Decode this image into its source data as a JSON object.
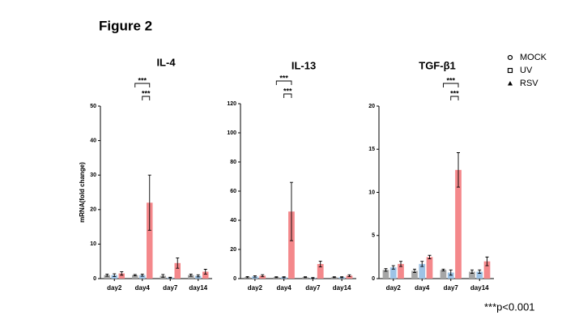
{
  "title": "Figure 2",
  "footnote": "***p<0.001",
  "chart_data": [
    {
      "type": "bar",
      "title": "IL-4",
      "ylabel": "mRNA(fold change)",
      "categories": [
        "day2",
        "day4",
        "day7",
        "day14"
      ],
      "ylim": [
        0,
        50
      ],
      "yticks": [
        0,
        10,
        20,
        30,
        40,
        50
      ],
      "series": [
        {
          "name": "MOCK",
          "color": "#a6a6a6",
          "label_color": "#000000",
          "marker": "circle",
          "values": [
            1,
            1,
            0.8,
            1
          ],
          "errors": [
            0.3,
            0.2,
            0.4,
            0.3
          ]
        },
        {
          "name": "UV",
          "color": "#9dc3e6",
          "label_color": "#1f2f9e",
          "marker": "square",
          "values": [
            1,
            1,
            0.3,
            0.8
          ],
          "errors": [
            0.4,
            0.3,
            0.1,
            0.3
          ]
        },
        {
          "name": "RSV",
          "color": "#f4888b",
          "label_color": "#e8322f",
          "marker": "triangle",
          "values": [
            1.5,
            22,
            4.5,
            2
          ],
          "errors": [
            0.5,
            8,
            1.5,
            0.7
          ]
        }
      ],
      "significance": [
        {
          "label": "***",
          "category": "day4",
          "between": [
            "MOCK",
            "RSV"
          ]
        },
        {
          "label": "***",
          "category": "day4",
          "between": [
            "UV",
            "RSV"
          ]
        }
      ]
    },
    {
      "type": "bar",
      "title": "IL-13",
      "categories": [
        "day2",
        "day4",
        "day7",
        "day14"
      ],
      "ylim": [
        0,
        120
      ],
      "yticks": [
        0,
        20,
        40,
        60,
        80,
        100,
        120
      ],
      "series": [
        {
          "name": "MOCK",
          "color": "#a6a6a6",
          "values": [
            1,
            1,
            1,
            1
          ],
          "errors": [
            0.4,
            0.3,
            0.3,
            0.3
          ]
        },
        {
          "name": "UV",
          "color": "#9dc3e6",
          "values": [
            1.5,
            1,
            0.5,
            1
          ],
          "errors": [
            0.5,
            0.3,
            0.2,
            0.3
          ]
        },
        {
          "name": "RSV",
          "color": "#f4888b",
          "values": [
            2,
            46,
            10,
            2
          ],
          "errors": [
            0.7,
            20,
            2,
            0.6
          ]
        }
      ],
      "significance": [
        {
          "label": "***",
          "category": "day4",
          "between": [
            "MOCK",
            "RSV"
          ]
        },
        {
          "label": "***",
          "category": "day4",
          "between": [
            "UV",
            "RSV"
          ]
        }
      ]
    },
    {
      "type": "bar",
      "title": "TGF-β1",
      "categories": [
        "day2",
        "day4",
        "day7",
        "day14"
      ],
      "ylim": [
        0,
        20
      ],
      "yticks": [
        0,
        5,
        10,
        15,
        20
      ],
      "series": [
        {
          "name": "MOCK",
          "color": "#a6a6a6",
          "values": [
            1,
            0.9,
            1,
            0.8
          ],
          "errors": [
            0.15,
            0.2,
            0.1,
            0.2
          ]
        },
        {
          "name": "UV",
          "color": "#9dc3e6",
          "values": [
            1.3,
            1.7,
            0.7,
            0.8
          ],
          "errors": [
            0.2,
            0.3,
            0.3,
            0.2
          ]
        },
        {
          "name": "RSV",
          "color": "#f4888b",
          "values": [
            1.7,
            2.5,
            12.6,
            2
          ],
          "errors": [
            0.3,
            0.2,
            2,
            0.5
          ]
        }
      ],
      "significance": [
        {
          "label": "***",
          "category": "day7",
          "between": [
            "MOCK",
            "RSV"
          ]
        },
        {
          "label": "***",
          "category": "day7",
          "between": [
            "UV",
            "RSV"
          ]
        }
      ]
    }
  ]
}
